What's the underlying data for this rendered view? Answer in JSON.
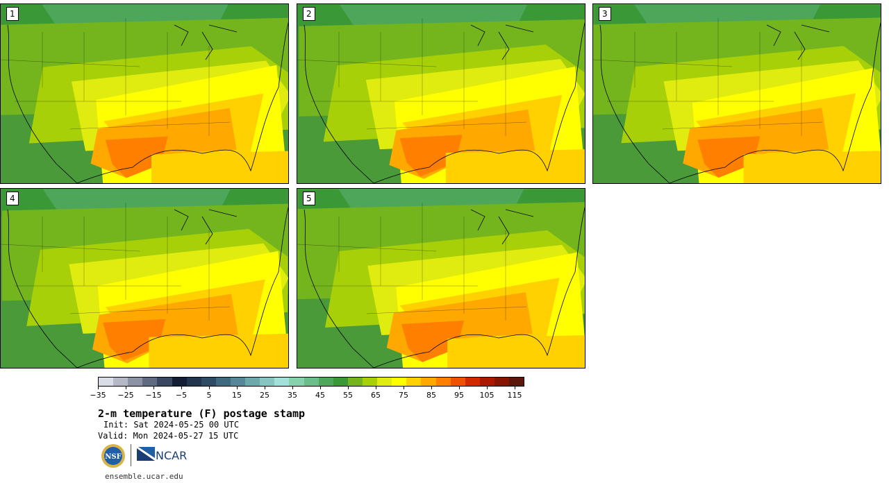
{
  "panels": [
    {
      "label": "1"
    },
    {
      "label": "2"
    },
    {
      "label": "3"
    },
    {
      "label": "4"
    },
    {
      "label": "5"
    }
  ],
  "colorbar": {
    "colors": [
      "#dadde6",
      "#b5b9c6",
      "#8b93a5",
      "#606b82",
      "#3a4760",
      "#131d33",
      "#23344f",
      "#2e4b66",
      "#3f6a7e",
      "#558798",
      "#6ea8ad",
      "#88c4c2",
      "#a4e0da",
      "#85d2ad",
      "#6bbd89",
      "#4da659",
      "#3b9837",
      "#74b51e",
      "#a8d008",
      "#e0ec10",
      "#ffff00",
      "#ffd100",
      "#ffa800",
      "#ff7f00",
      "#ee5200",
      "#d02800",
      "#ab1800",
      "#861500",
      "#5c170c"
    ],
    "ticks": [
      "−35",
      "−25",
      "−15",
      "−5",
      "5",
      "15",
      "25",
      "35",
      "45",
      "55",
      "65",
      "75",
      "85",
      "95",
      "105",
      "115"
    ],
    "units": "F"
  },
  "title": "2-m temperature (F) postage stamp",
  "init": "Init: Sat 2024-05-25 00 UTC",
  "valid": "Valid: Mon 2024-05-27 15 UTC",
  "logos": {
    "nsf": "NSF",
    "ncar": "NCAR"
  },
  "url": "ensemble.ucar.edu"
}
